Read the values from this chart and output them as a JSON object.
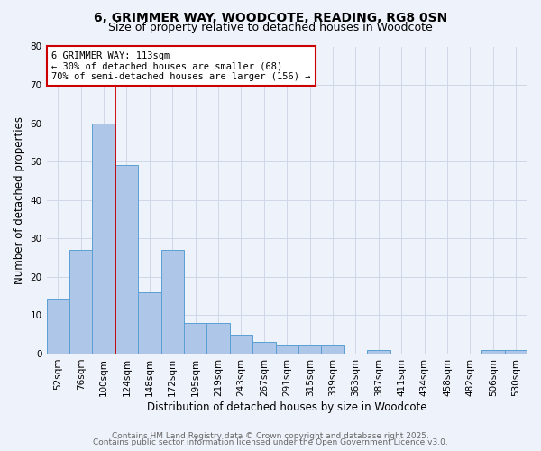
{
  "title_line1": "6, GRIMMER WAY, WOODCOTE, READING, RG8 0SN",
  "title_line2": "Size of property relative to detached houses in Woodcote",
  "xlabel": "Distribution of detached houses by size in Woodcote",
  "ylabel": "Number of detached properties",
  "bar_categories": [
    "52sqm",
    "76sqm",
    "100sqm",
    "124sqm",
    "148sqm",
    "172sqm",
    "195sqm",
    "219sqm",
    "243sqm",
    "267sqm",
    "291sqm",
    "315sqm",
    "339sqm",
    "363sqm",
    "387sqm",
    "411sqm",
    "434sqm",
    "458sqm",
    "482sqm",
    "506sqm",
    "530sqm"
  ],
  "bar_values": [
    14,
    27,
    60,
    49,
    16,
    27,
    8,
    8,
    5,
    3,
    2,
    2,
    2,
    0,
    1,
    0,
    0,
    0,
    0,
    1,
    1
  ],
  "bar_color": "#aec6e8",
  "bar_edge_color": "#5a9fd4",
  "vline_x": 2.5,
  "vline_color": "#cc0000",
  "annotation_text": "6 GRIMMER WAY: 113sqm\n← 30% of detached houses are smaller (68)\n70% of semi-detached houses are larger (156) →",
  "annotation_box_color": "#ffffff",
  "annotation_box_edge": "#cc0000",
  "ylim": [
    0,
    80
  ],
  "yticks": [
    0,
    10,
    20,
    30,
    40,
    50,
    60,
    70,
    80
  ],
  "grid_color": "#d0d8e8",
  "background_color": "#eef2fa",
  "footer_line1": "Contains HM Land Registry data © Crown copyright and database right 2025.",
  "footer_line2": "Contains public sector information licensed under the Open Government Licence v3.0.",
  "title_fontsize": 10,
  "subtitle_fontsize": 9,
  "axis_label_fontsize": 8.5,
  "tick_label_fontsize": 7.5,
  "annotation_fontsize": 7.5,
  "footer_fontsize": 6.5
}
